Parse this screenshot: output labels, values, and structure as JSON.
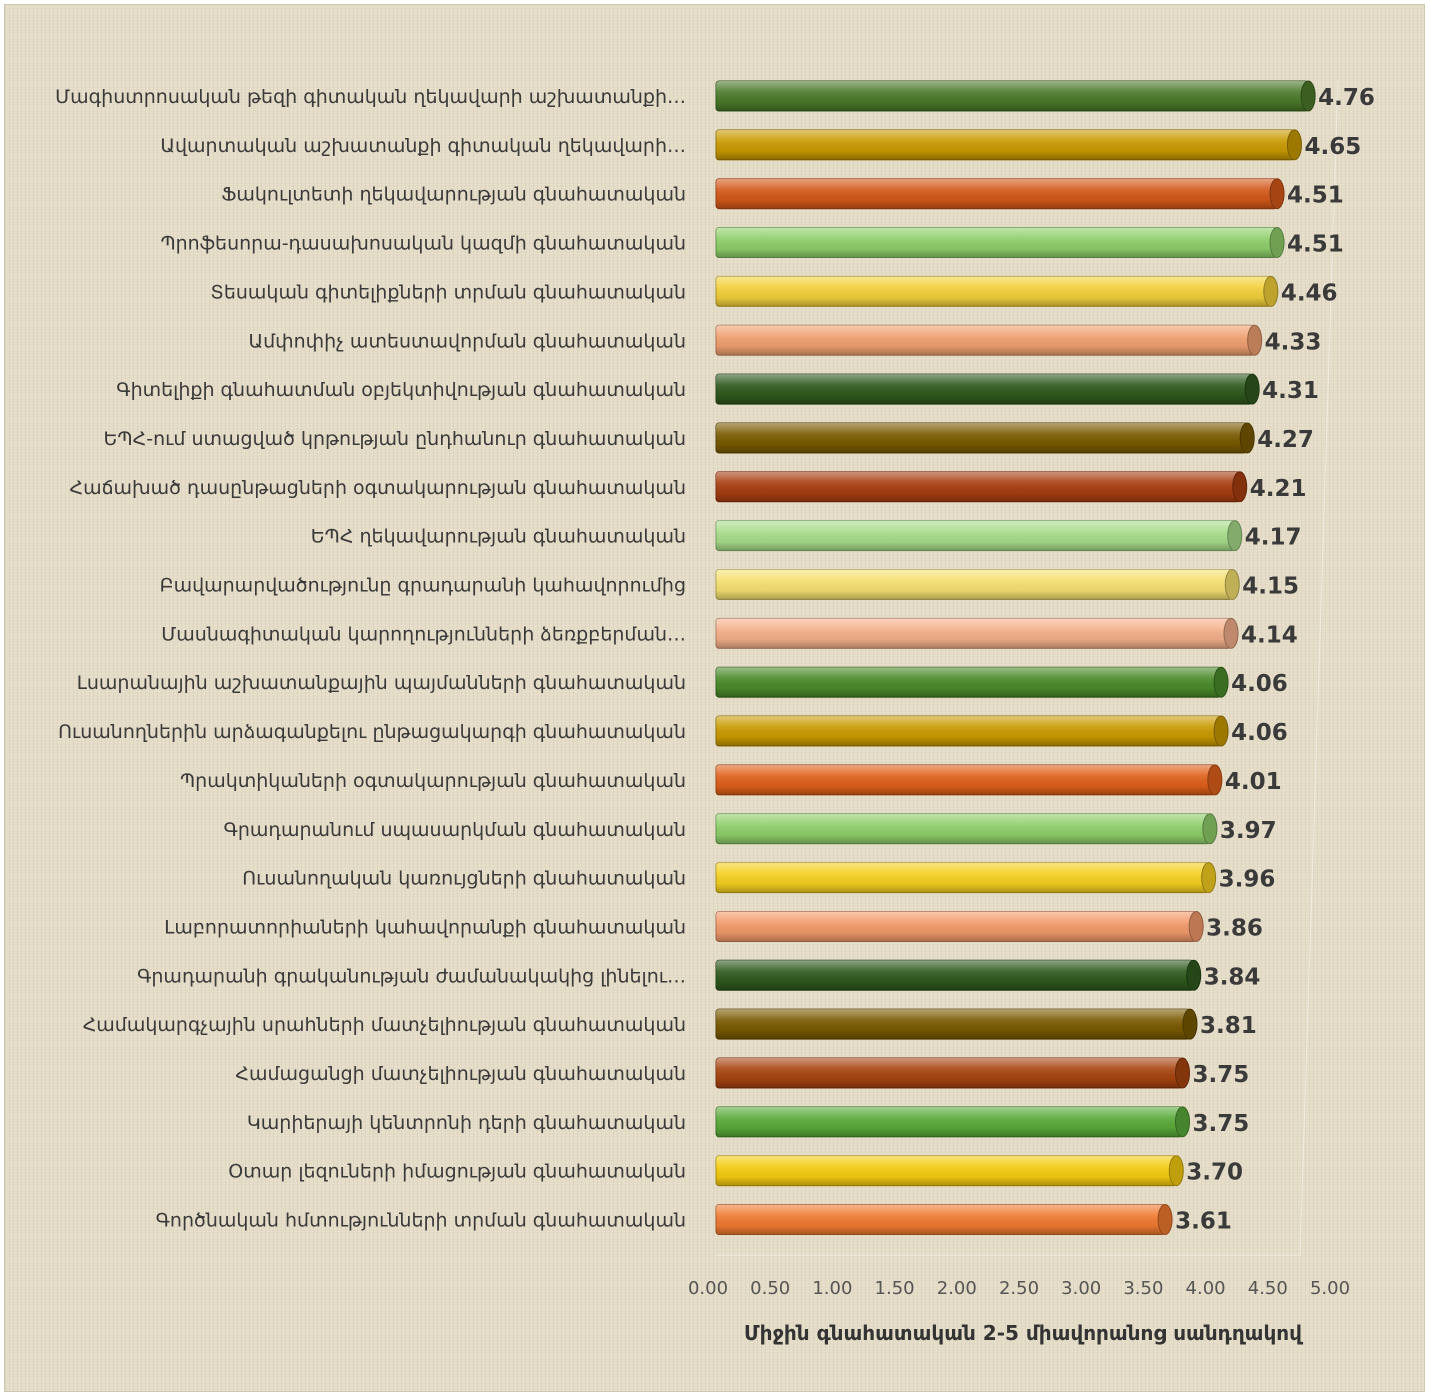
{
  "chart_data": {
    "type": "bar",
    "orientation": "horizontal",
    "categories": [
      "Մագիստրոսական թեզի գիտական ղեկավարի աշխատանքի…",
      "Ավարտական աշխատանքի  գիտական ղեկավարի…",
      "Ֆակուլտետի ղեկավարության գնահատական",
      "Պրոֆեսորա-դասախոսական կազմի գնահատական",
      "Տեսական գիտելիքների տրման գնահատական",
      "Ամփոփիչ ատեստավորման գնահատական",
      "Գիտելիքի գնահատման օբյեկտիվության գնահատական",
      "ԵՊՀ-ում ստացված կրթության ընդհանուր գնահատական",
      "Հաճախած դասընթացների օգտակարության գնահատական",
      "ԵՊՀ ղեկավարության գնահատական",
      "Բավարարվածությունը գրադարանի կահավորումից",
      "Մասնագիտական կարողությունների ձեռքբերման…",
      "Լսարանային աշխատանքային պայմանների գնահատական",
      "Ուսանողներին արձագանքելու ընթացակարգի գնահատական",
      "Պրակտիկաների օգտակարության գնահատական",
      "Գրադարանում սպասարկման գնահատական",
      "Ուսանողական կառույցների գնահատական",
      "Լաբորատորիաների կահավորանքի գնահատական",
      "Գրադարանի գրականության ժամանակակից լինելու…",
      "Համակարգչային սրահների մատչելիության գնահատական",
      "Համացանցի մատչելիության գնահատական",
      "Կարիերայի կենտրոնի դերի գնահատական",
      "Օտար լեզուների իմացության գնահատական",
      "Գործնական հմտությունների տրման գնահատական"
    ],
    "values": [
      4.76,
      4.65,
      4.51,
      4.51,
      4.46,
      4.33,
      4.31,
      4.27,
      4.21,
      4.17,
      4.15,
      4.14,
      4.06,
      4.06,
      4.01,
      3.97,
      3.96,
      3.86,
      3.84,
      3.81,
      3.75,
      3.75,
      3.7,
      3.61
    ],
    "value_labels": [
      "4.76",
      "4.65",
      "4.51",
      "4.51",
      "4.46",
      "4.33",
      "4.31",
      "4.27",
      "4.21",
      "4.17",
      "4.15",
      "4.14",
      "4.06",
      "4.06",
      "4.01",
      "3.97",
      "3.96",
      "3.86",
      "3.84",
      "3.81",
      "3.75",
      "3.75",
      "3.70",
      "3.61"
    ],
    "bar_colors": [
      "#4a7a2a",
      "#c99a00",
      "#d4581a",
      "#8fcf6a",
      "#f2d03a",
      "#f0a070",
      "#2f5a1e",
      "#7a5a00",
      "#a83e10",
      "#a8dd8a",
      "#f5e070",
      "#f4b08a",
      "#4a8a2a",
      "#c99a00",
      "#e0601a",
      "#8fcf6a",
      "#f5d020",
      "#f29a6a",
      "#2f5a1e",
      "#7a5a00",
      "#a84410",
      "#5aaa3a",
      "#f5cc10",
      "#f07a30"
    ],
    "x_ticks": [
      "0.00",
      "0.50",
      "1.00",
      "1.50",
      "2.00",
      "2.50",
      "3.00",
      "3.50",
      "4.00",
      "4.50",
      "5.00"
    ],
    "xlim": [
      0,
      5
    ],
    "xlabel": "Միջին գնահատական 2-5 միավորանոց սանդղակով",
    "title": "",
    "grid": false,
    "legend": false
  }
}
